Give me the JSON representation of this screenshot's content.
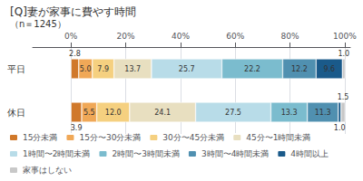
{
  "chart_data": {
    "type": "bar",
    "title": "[Q]妻が家事に費やす時間",
    "subtitle": "（n＝1245）",
    "orientation": "horizontal",
    "stacked": true,
    "data_labels": true,
    "grid": true,
    "legend": "bottom",
    "categories": [
      "平日",
      "休日"
    ],
    "series": [
      {
        "name": "15分未満",
        "color": "#d0782a",
        "values": [
          2.8,
          3.9
        ],
        "value_labels": [
          "2.8",
          "3.9"
        ]
      },
      {
        "name": "15分〜30分未満",
        "color": "#f0a857",
        "values": [
          5.0,
          5.5
        ],
        "value_labels": [
          "5.0",
          "5.5"
        ]
      },
      {
        "name": "30分〜45分未満",
        "color": "#f5d080",
        "values": [
          7.9,
          12.0
        ],
        "value_labels": [
          "7.9",
          "12.0"
        ]
      },
      {
        "name": "45分〜1時間未満",
        "color": "#e8dfc0",
        "values": [
          13.7,
          24.1
        ],
        "value_labels": [
          "13.7",
          "24.1"
        ]
      },
      {
        "name": "1時間〜2時間未満",
        "color": "#b8dce8",
        "values": [
          25.7,
          27.5
        ],
        "value_labels": [
          "25.7",
          "27.5"
        ]
      },
      {
        "name": "2時間〜3時間未満",
        "color": "#7bbcce",
        "values": [
          22.2,
          13.3
        ],
        "value_labels": [
          "22.2",
          "13.3"
        ]
      },
      {
        "name": "3時間〜4時間未満",
        "color": "#5090b0",
        "values": [
          12.2,
          11.3
        ],
        "value_labels": [
          "12.2",
          "11.3"
        ]
      },
      {
        "name": "4時間以上",
        "color": "#1a5a8a",
        "values": [
          9.6,
          1.0
        ],
        "value_labels": [
          "9.6",
          "1.0"
        ]
      },
      {
        "name": "家事はしない",
        "color": "#c8c8c8",
        "values": [
          1.0,
          1.5
        ],
        "value_labels": [
          "1.0",
          "1.5"
        ]
      }
    ],
    "xlim": [
      -14,
      102
    ],
    "xticks": [
      {
        "value": 0,
        "label": "0%"
      },
      {
        "value": 20,
        "label": "20%"
      },
      {
        "value": 40,
        "label": "40%"
      },
      {
        "value": 60,
        "label": "60%"
      },
      {
        "value": 80,
        "label": "80%"
      },
      {
        "value": 100,
        "label": "100%"
      }
    ]
  }
}
